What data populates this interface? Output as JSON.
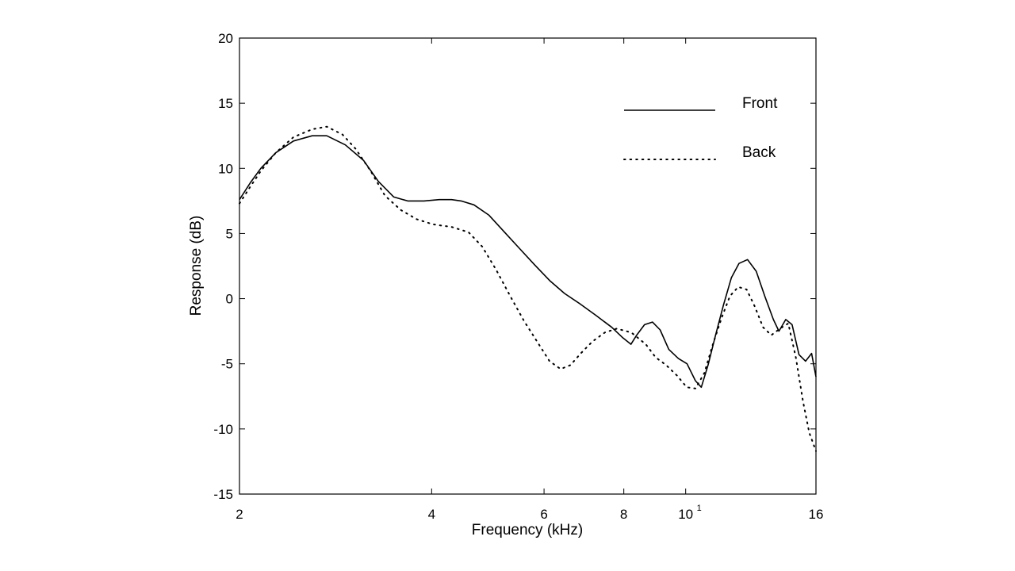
{
  "chart_data": {
    "type": "line",
    "title": "",
    "xlabel": "Frequency (kHz)",
    "ylabel": "Response (dB)",
    "x_scale": "log",
    "xlim": [
      2,
      16
    ],
    "ylim": [
      -15,
      20
    ],
    "xticks": [
      {
        "value": 2,
        "label": "2"
      },
      {
        "value": 4,
        "label": "4"
      },
      {
        "value": 6,
        "label": "6"
      },
      {
        "value": 8,
        "label": "8"
      },
      {
        "value": 10,
        "label": "10",
        "exponent": "1"
      },
      {
        "value": 16,
        "label": "16"
      }
    ],
    "yticks": [
      {
        "value": -15,
        "label": "-15"
      },
      {
        "value": -10,
        "label": "-10"
      },
      {
        "value": -5,
        "label": "-5"
      },
      {
        "value": 0,
        "label": "0"
      },
      {
        "value": 5,
        "label": "5"
      },
      {
        "value": 10,
        "label": "10"
      },
      {
        "value": 15,
        "label": "15"
      },
      {
        "value": 20,
        "label": "20"
      }
    ],
    "grid": false,
    "legend": {
      "position": "top-right"
    },
    "series": [
      {
        "name": "Front",
        "style": "solid",
        "color": "#000000",
        "x": [
          2.0,
          2.08,
          2.16,
          2.28,
          2.43,
          2.6,
          2.74,
          2.93,
          3.13,
          3.3,
          3.49,
          3.67,
          3.89,
          4.11,
          4.3,
          4.45,
          4.66,
          4.92,
          5.18,
          5.48,
          5.8,
          6.12,
          6.46,
          6.83,
          7.24,
          7.66,
          7.97,
          8.21,
          8.38,
          8.62,
          8.87,
          9.12,
          9.41,
          9.74,
          10.05,
          10.36,
          10.58,
          10.84,
          11.14,
          11.46,
          11.79,
          12.12,
          12.5,
          12.9,
          13.3,
          13.72,
          14.0,
          14.35,
          14.68,
          15.05,
          15.41,
          15.75,
          16.0
        ],
        "values": [
          7.6,
          8.9,
          10.0,
          11.2,
          12.1,
          12.5,
          12.5,
          11.8,
          10.6,
          9.0,
          7.8,
          7.5,
          7.5,
          7.6,
          7.6,
          7.5,
          7.2,
          6.4,
          5.2,
          3.9,
          2.6,
          1.4,
          0.4,
          -0.4,
          -1.3,
          -2.2,
          -3.0,
          -3.5,
          -2.8,
          -2.0,
          -1.8,
          -2.4,
          -3.9,
          -4.6,
          -5.0,
          -6.3,
          -6.8,
          -5.1,
          -2.8,
          -0.5,
          1.6,
          2.7,
          3.0,
          2.1,
          0.2,
          -1.6,
          -2.5,
          -1.6,
          -2.0,
          -4.3,
          -4.8,
          -4.2,
          -6.0
        ]
      },
      {
        "name": "Back",
        "style": "dotted",
        "color": "#000000",
        "x": [
          2.0,
          2.08,
          2.16,
          2.28,
          2.43,
          2.6,
          2.74,
          2.9,
          3.04,
          3.21,
          3.38,
          3.58,
          3.79,
          4.02,
          4.3,
          4.57,
          4.8,
          5.05,
          5.31,
          5.58,
          5.87,
          6.12,
          6.37,
          6.6,
          6.85,
          7.14,
          7.47,
          7.8,
          8.22,
          8.66,
          8.97,
          9.32,
          9.69,
          10.04,
          10.36,
          10.7,
          11.03,
          11.38,
          11.73,
          12.09,
          12.46,
          12.83,
          13.22,
          13.62,
          14.05,
          14.48,
          14.88,
          15.27,
          15.62,
          16.0
        ],
        "values": [
          7.3,
          8.6,
          9.8,
          11.2,
          12.4,
          13.0,
          13.2,
          12.6,
          11.5,
          9.8,
          7.9,
          6.8,
          6.1,
          5.7,
          5.5,
          5.1,
          4.0,
          2.2,
          0.2,
          -1.7,
          -3.4,
          -4.8,
          -5.4,
          -5.1,
          -4.2,
          -3.3,
          -2.6,
          -2.3,
          -2.6,
          -3.5,
          -4.5,
          -5.1,
          -5.9,
          -6.8,
          -6.9,
          -5.7,
          -3.5,
          -1.5,
          0.2,
          0.9,
          0.7,
          -0.6,
          -2.2,
          -2.8,
          -2.3,
          -1.9,
          -4.5,
          -7.9,
          -10.3,
          -11.7
        ]
      }
    ]
  }
}
